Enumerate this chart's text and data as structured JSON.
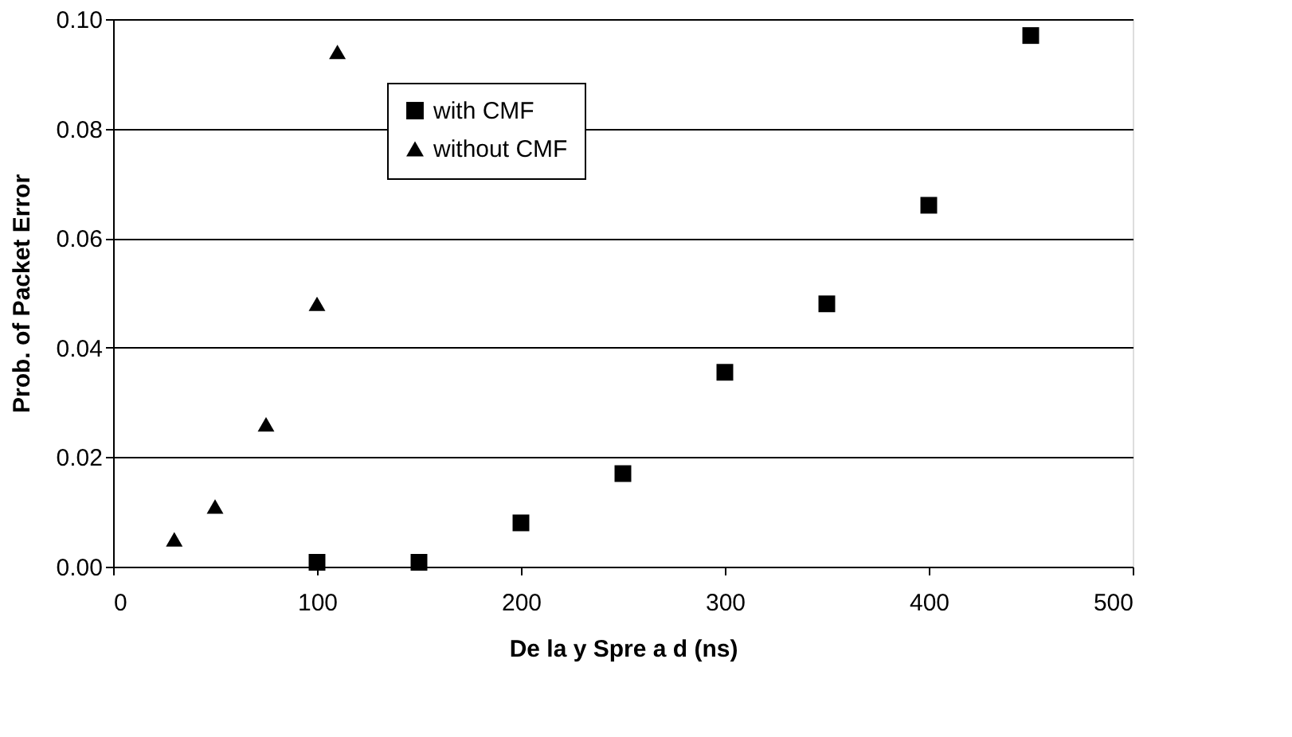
{
  "chart_data": {
    "type": "scatter",
    "xlabel": "De la y Spre a d (ns)",
    "ylabel": "Prob. of Packet Error",
    "xlim": [
      0,
      500
    ],
    "xticks": [
      0,
      100,
      200,
      300,
      400,
      500
    ],
    "ylim": [
      0,
      0.1
    ],
    "yticks": [
      {
        "value": 0,
        "label": "0.00"
      },
      {
        "value": 0.02,
        "label": "0.02"
      },
      {
        "value": 0.04,
        "label": "0.04"
      },
      {
        "value": 0.06,
        "label": "0.06"
      },
      {
        "value": 0.08,
        "label": "0.08"
      },
      {
        "value": 0.1,
        "label": "0.10"
      }
    ],
    "grid": "y",
    "legend": "top",
    "series": [
      {
        "name": "with CMF",
        "color": "#000000",
        "marker": "square",
        "x": [
          100,
          150,
          200,
          250,
          300,
          350,
          400,
          450
        ],
        "values": [
          0.0008,
          0.0008,
          0.008,
          0.017,
          0.0355,
          0.048,
          0.066,
          0.097
        ]
      },
      {
        "name": "without CMF",
        "color": "#000000",
        "marker": "triangle",
        "x": [
          30,
          50,
          75,
          100,
          110
        ],
        "values": [
          0.005,
          0.011,
          0.026,
          0.048,
          0.094
        ]
      }
    ]
  }
}
